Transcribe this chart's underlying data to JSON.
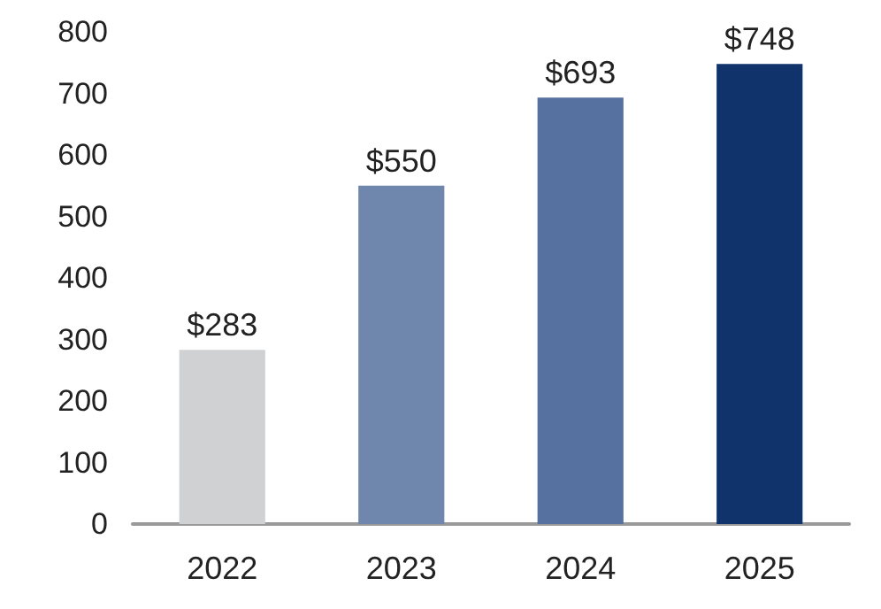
{
  "chart_data": {
    "type": "bar",
    "categories": [
      "2022",
      "2023",
      "2024",
      "2025"
    ],
    "values": [
      283,
      550,
      693,
      748
    ],
    "colors": [
      "#d0d1d3",
      "#6f86ad",
      "#5671a0",
      "#10336c"
    ],
    "value_labels": [
      "$283",
      "$550",
      "$693",
      "$748"
    ],
    "ylim": [
      0,
      800
    ],
    "yticks": [
      0,
      100,
      200,
      300,
      400,
      500,
      600,
      700,
      800
    ],
    "grid": false
  }
}
